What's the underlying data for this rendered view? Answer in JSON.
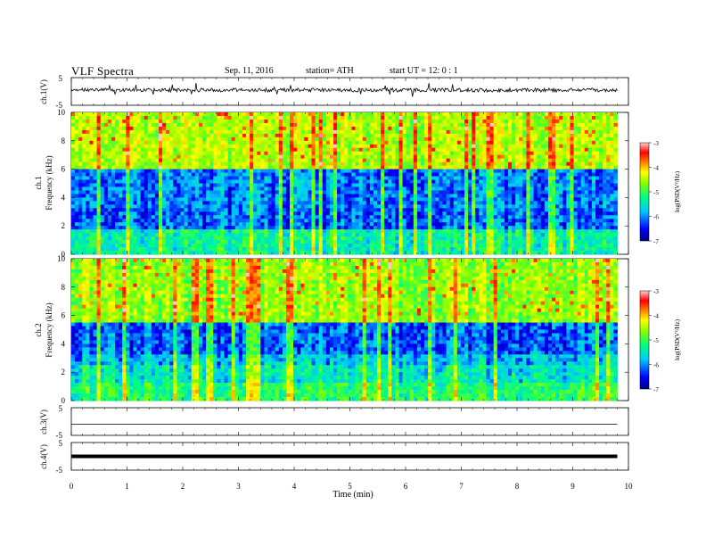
{
  "header": {
    "title": "VLF  Spectra",
    "date": "Sep. 11, 2016",
    "station": "station= ATH",
    "start": "start  UT  =    12: 0   : 1"
  },
  "chart_data": [
    {
      "type": "line",
      "name": "ch1-waveform",
      "ylabel": "ch.1(V)",
      "yticks": [
        "5",
        "-5"
      ],
      "ylim": [
        -5,
        5
      ],
      "xlim": [
        0,
        10
      ],
      "approx_level": 0.5,
      "color": "#000000"
    },
    {
      "type": "heatmap",
      "name": "ch1-spectrogram",
      "ylabel": "ch.1\nFrequency (kHz)",
      "yticks": [
        "0",
        "2",
        "4",
        "6",
        "8",
        "10"
      ],
      "ylim": [
        0,
        10
      ],
      "xlim": [
        0,
        9.8
      ],
      "colorbar": {
        "label": "log(PSD(V²/Hz)",
        "ticks": [
          "-3",
          "-4",
          "-5",
          "-6",
          "-7"
        ],
        "range": [
          -7,
          -3
        ]
      }
    },
    {
      "type": "heatmap",
      "name": "ch2-spectrogram",
      "ylabel": "ch.2\nFrequency (kHz)",
      "yticks": [
        "0",
        "2",
        "4",
        "6",
        "8",
        "10"
      ],
      "ylim": [
        0,
        10
      ],
      "xlim": [
        0,
        9.8
      ],
      "colorbar": {
        "label": "log(PSD(V²/Hz)",
        "ticks": [
          "-3",
          "-4",
          "-5",
          "-6",
          "-7"
        ],
        "range": [
          -7,
          -3
        ]
      }
    },
    {
      "type": "line",
      "name": "ch3-waveform",
      "ylabel": "ch.3(V)",
      "yticks": [
        "5",
        "-5"
      ],
      "ylim": [
        -5,
        5
      ],
      "approx_level": -1,
      "color": "#000000"
    },
    {
      "type": "line",
      "name": "ch4-waveform",
      "ylabel": "ch.4(V)",
      "yticks": [
        "5",
        "-5"
      ],
      "ylim": [
        -5,
        5
      ],
      "approx_level": 0,
      "color": "#000000"
    }
  ],
  "xaxis": {
    "label": "Time  (min)",
    "ticks": [
      "0",
      "1",
      "2",
      "3",
      "4",
      "5",
      "6",
      "7",
      "8",
      "9",
      "10"
    ]
  },
  "colors": {
    "colormap": [
      "#000080",
      "#0000ff",
      "#00c8ff",
      "#00ff80",
      "#80ff00",
      "#ffff00",
      "#ff8000",
      "#ff0000",
      "#ffc8c8"
    ]
  }
}
